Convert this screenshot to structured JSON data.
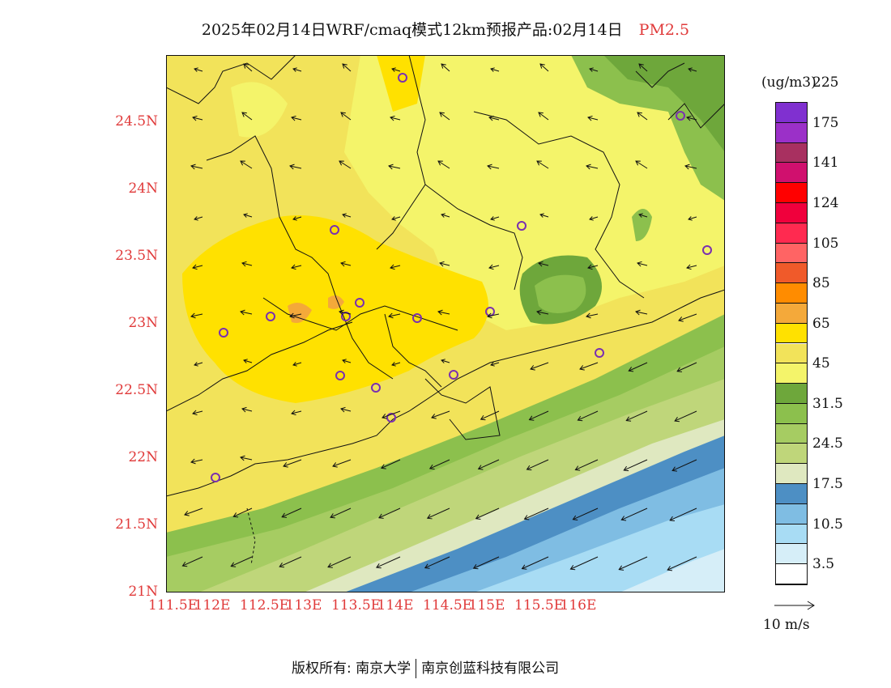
{
  "title": {
    "text": "2025年02月14日WRF/cmaq模式12km预报产品:02月14日",
    "variable": "PM2.5"
  },
  "axes": {
    "x_ticks": [
      "111.5E",
      "112E",
      "112.5E",
      "113E",
      "113.5E",
      "114E",
      "114.5E",
      "115E",
      "115.5E",
      "116E"
    ],
    "y_ticks": [
      "21N",
      "21.5N",
      "22N",
      "22.5N",
      "23N",
      "23.5N",
      "24N",
      "24.5N"
    ],
    "tick_color": "#e03a3a"
  },
  "colorbar": {
    "unit": "(ug/m3)",
    "colors": [
      "#ffffff",
      "#d6eef8",
      "#a8dcf4",
      "#7fbde3",
      "#4d8fc4",
      "#dfe8c0",
      "#bfd67a",
      "#a6cc62",
      "#8cc04d",
      "#6ea73b",
      "#f4f46a",
      "#f2e35a",
      "#ffe100",
      "#f4a93a",
      "#ff8c00",
      "#f05a2a",
      "#ff6464",
      "#ff2a50",
      "#f0003c",
      "#ff0000",
      "#d0106e",
      "#a83060",
      "#9b30c8",
      "#8030d0"
    ],
    "labels": [
      "3.5",
      "10.5",
      "17.5",
      "24.5",
      "31.5",
      "45",
      "65",
      "85",
      "105",
      "124",
      "141",
      "175",
      "225"
    ]
  },
  "reference_vector": {
    "label": "10 m/s"
  },
  "monitoring_sites_color": "#7a2fb0",
  "footer": {
    "left": "版权所有: 南京大学",
    "right": "南京创蓝科技有限公司"
  }
}
